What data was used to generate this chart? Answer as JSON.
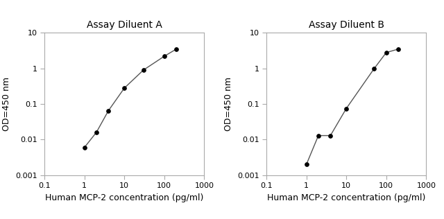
{
  "plot_A": {
    "title": "Assay Diluent A",
    "x": [
      1,
      2,
      4,
      10,
      30,
      100,
      200
    ],
    "y": [
      0.006,
      0.016,
      0.065,
      0.28,
      0.9,
      2.2,
      3.5
    ],
    "xlabel": "Human MCP-2 concentration (pg/ml)",
    "ylabel": "OD=450 nm",
    "xlim": [
      0.1,
      1000
    ],
    "ylim": [
      0.001,
      10
    ]
  },
  "plot_B": {
    "title": "Assay Diluent B",
    "x": [
      1,
      2,
      4,
      10,
      50,
      100,
      200
    ],
    "y": [
      0.002,
      0.013,
      0.013,
      0.075,
      1.0,
      2.8,
      3.5
    ],
    "xlabel": "Human MCP-2 concentration (pg/ml)",
    "ylabel": "OD=450 nm",
    "xlim": [
      0.1,
      1000
    ],
    "ylim": [
      0.001,
      10
    ]
  },
  "line_color": "#555555",
  "marker": "o",
  "marker_color": "black",
  "marker_size": 4,
  "title_fontsize": 10,
  "label_fontsize": 9,
  "tick_labelsize": 8,
  "xticks": [
    0.1,
    1,
    10,
    100,
    1000
  ],
  "yticks": [
    0.001,
    0.01,
    0.1,
    1,
    10
  ],
  "spine_color": "#aaaaaa",
  "linewidth": 1.0
}
